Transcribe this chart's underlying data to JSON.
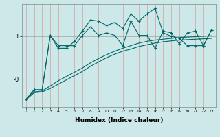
{
  "xlabel": "Humidex (Indice chaleur)",
  "background_color": "#cce8e8",
  "line_color": "#006666",
  "x_ticks": [
    0,
    1,
    2,
    3,
    4,
    5,
    6,
    7,
    8,
    9,
    10,
    11,
    12,
    13,
    14,
    15,
    16,
    17,
    18,
    19,
    20,
    21,
    22,
    23
  ],
  "ylim": [
    -0.65,
    1.75
  ],
  "xlim": [
    -0.5,
    23.5
  ],
  "line1_y": [
    -0.48,
    -0.25,
    -0.25,
    1.02,
    0.78,
    0.78,
    0.78,
    1.02,
    1.22,
    1.02,
    1.08,
    1.02,
    0.78,
    1.35,
    1.02,
    1.02,
    0.72,
    1.12,
    1.08,
    0.82,
    1.08,
    1.12,
    0.78,
    1.15
  ],
  "line2_y": [
    -0.48,
    -0.25,
    -0.25,
    1.02,
    0.72,
    0.72,
    0.88,
    1.12,
    1.38,
    1.35,
    1.25,
    1.32,
    1.18,
    1.52,
    1.35,
    1.52,
    1.65,
    1.08,
    1.0,
    0.95,
    0.78,
    0.78,
    0.78,
    1.15
  ],
  "line3_y": [
    -0.48,
    -0.32,
    -0.3,
    -0.22,
    -0.12,
    -0.02,
    0.08,
    0.18,
    0.3,
    0.4,
    0.5,
    0.58,
    0.65,
    0.7,
    0.76,
    0.8,
    0.84,
    0.87,
    0.89,
    0.91,
    0.92,
    0.93,
    0.94,
    0.95
  ],
  "line4_y": [
    -0.48,
    -0.3,
    -0.28,
    -0.16,
    -0.04,
    0.06,
    0.16,
    0.26,
    0.38,
    0.48,
    0.57,
    0.65,
    0.72,
    0.78,
    0.84,
    0.88,
    0.91,
    0.93,
    0.95,
    0.97,
    0.98,
    0.99,
    1.0,
    1.01
  ]
}
